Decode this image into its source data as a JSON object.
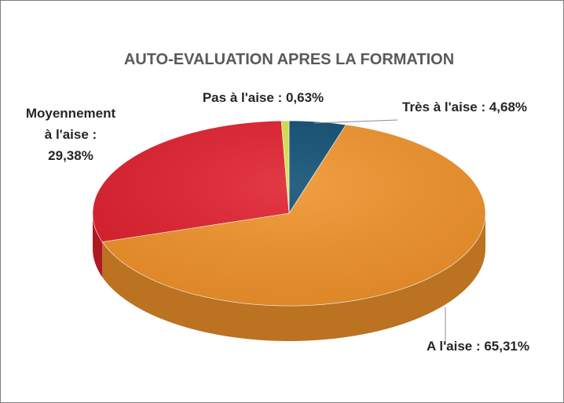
{
  "chart_data": {
    "type": "pie3d",
    "title": "AUTO-EVALUATION APRES LA FORMATION",
    "categories": [
      "Très à l'aise",
      "A l'aise",
      "Moyennement à l'aise",
      "Pas à l'aise"
    ],
    "values": [
      4.68,
      65.31,
      29.38,
      0.63
    ],
    "value_labels": [
      "Très à l'aise : 4,68%",
      "A l'aise : 65,31%",
      "Moyennement à l'aise : 29,38%",
      "Pas à l'aise : 0,63%"
    ],
    "colors": [
      "#0e4d72",
      "#f0922a",
      "#e01f2d",
      "#d6e24c"
    ]
  }
}
